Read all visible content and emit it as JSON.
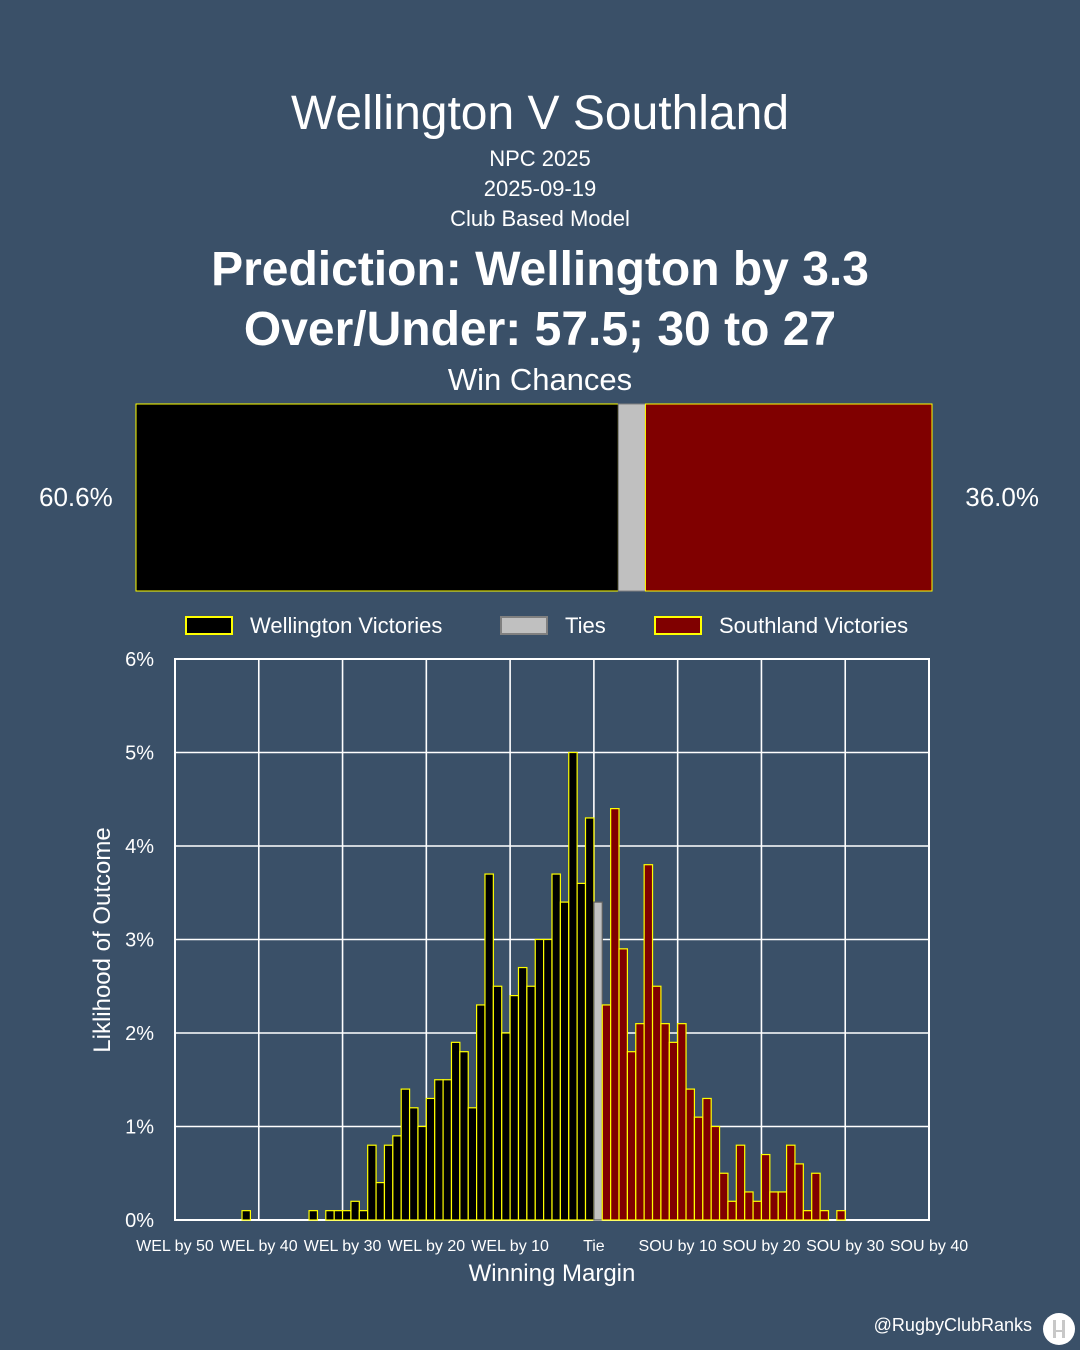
{
  "header": {
    "title": "Wellington V Southland",
    "competition": "NPC 2025",
    "date": "2025-09-19",
    "model": "Club Based Model",
    "prediction": "Prediction: Wellington by 3.3",
    "over_under": "Over/Under: 57.5; 30 to 27",
    "win_chances_title": "Win Chances"
  },
  "win_chances": {
    "home_label": "60.6%",
    "away_label": "36.0%",
    "home": 60.6,
    "tie": 3.4,
    "away": 36.0
  },
  "colors": {
    "background": "#3a5068",
    "home": "#000000",
    "tie": "#c0c0c0",
    "away": "#800000",
    "edge": "#ffff00",
    "grid": "#ffffff"
  },
  "chart_data": {
    "type": "bar",
    "xlabel": "Winning Margin",
    "ylabel": "Liklihood of Outcome",
    "ylim": [
      0,
      6
    ],
    "xlim": [
      -50,
      40
    ],
    "y_ticks": [
      "0%",
      "1%",
      "2%",
      "3%",
      "4%",
      "5%",
      "6%"
    ],
    "x_ticks": [
      {
        "value": -50,
        "label": "WEL by 50"
      },
      {
        "value": -40,
        "label": "WEL by 40"
      },
      {
        "value": -30,
        "label": "WEL by 30"
      },
      {
        "value": -20,
        "label": "WEL by 20"
      },
      {
        "value": -10,
        "label": "WEL by 10"
      },
      {
        "value": 0,
        "label": "Tie"
      },
      {
        "value": 10,
        "label": "SOU by 10"
      },
      {
        "value": 20,
        "label": "SOU by 20"
      },
      {
        "value": 30,
        "label": "SOU by 30"
      },
      {
        "value": 40,
        "label": "SOU by 40"
      }
    ],
    "legend": [
      "Wellington Victories",
      "Ties",
      "Southland Victories"
    ],
    "legend_position": "top",
    "grid": true,
    "series": [
      {
        "name": "Wellington Victories",
        "x": [
          -42,
          -34,
          -32,
          -31,
          -30,
          -29,
          -28,
          -27,
          -26,
          -25,
          -24,
          -23,
          -22,
          -21,
          -20,
          -19,
          -18,
          -17,
          -16,
          -15,
          -14,
          -13,
          -12,
          -11,
          -10,
          -9,
          -8,
          -7,
          -6,
          -5,
          -4,
          -3,
          -2,
          -1
        ],
        "values": [
          0.1,
          0.1,
          0.1,
          0.1,
          0.1,
          0.2,
          0.1,
          0.8,
          0.4,
          0.8,
          0.9,
          1.4,
          1.2,
          1.0,
          1.3,
          1.5,
          1.5,
          1.9,
          1.8,
          1.2,
          2.3,
          3.7,
          2.5,
          2.0,
          2.4,
          2.7,
          2.5,
          3.0,
          3.0,
          3.7,
          3.4,
          5.0,
          3.6,
          4.3
        ]
      },
      {
        "name": "Ties",
        "x": [
          0
        ],
        "values": [
          3.4
        ]
      },
      {
        "name": "Southland Victories",
        "x": [
          1,
          2,
          3,
          4,
          5,
          6,
          7,
          8,
          9,
          10,
          11,
          12,
          13,
          14,
          15,
          16,
          17,
          18,
          19,
          20,
          21,
          22,
          23,
          24,
          25,
          26,
          27,
          29
        ],
        "values": [
          2.3,
          4.4,
          2.9,
          1.8,
          2.1,
          3.8,
          2.5,
          2.1,
          1.9,
          2.1,
          1.4,
          1.1,
          1.3,
          1.0,
          0.5,
          0.2,
          0.8,
          0.3,
          0.2,
          0.7,
          0.3,
          0.3,
          0.8,
          0.6,
          0.1,
          0.5,
          0.1,
          0.1
        ]
      }
    ]
  },
  "footer": {
    "credit": "@RugbyClubRanks"
  }
}
